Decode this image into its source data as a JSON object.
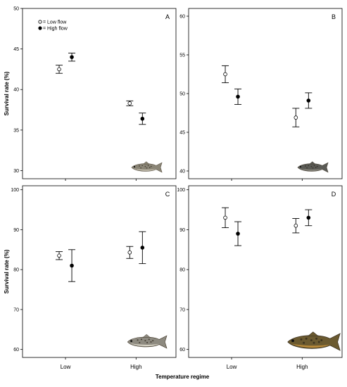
{
  "colors": {
    "low_flow": "#ffffff",
    "high_flow": "#000000",
    "axis": "#000000"
  },
  "figure": {
    "ylabel": "Survival rate (%)",
    "xlabel": "Temperature regime"
  },
  "legend": {
    "placement": "top-left",
    "items": [
      {
        "label": "= Low flow",
        "marker": "open-circle"
      },
      {
        "label": "= High flow",
        "marker": "filled-circle"
      }
    ]
  },
  "chart_data": [
    {
      "panel": "A",
      "type": "scatter",
      "categories": [
        "Low",
        "High"
      ],
      "ylim": [
        29,
        50
      ],
      "yticks": [
        30,
        35,
        40,
        45,
        50
      ],
      "icon": "fish-fry-icon",
      "series": [
        {
          "name": "Low flow",
          "values": [
            42.5,
            38.3
          ],
          "err": [
            0.5,
            0.3
          ]
        },
        {
          "name": "High flow",
          "values": [
            44.0,
            36.4
          ],
          "err": [
            0.5,
            0.7
          ]
        }
      ]
    },
    {
      "panel": "B",
      "type": "scatter",
      "categories": [
        "Low",
        "High"
      ],
      "ylim": [
        39,
        61
      ],
      "yticks": [
        40,
        45,
        50,
        55,
        60
      ],
      "icon": "fish-parr-icon",
      "series": [
        {
          "name": "Low flow",
          "values": [
            52.5,
            46.9
          ],
          "err": [
            1.1,
            1.2
          ]
        },
        {
          "name": "High flow",
          "values": [
            49.6,
            49.1
          ],
          "err": [
            1.0,
            1.0
          ]
        }
      ]
    },
    {
      "panel": "C",
      "type": "scatter",
      "categories": [
        "Low",
        "High"
      ],
      "ylim": [
        58,
        101
      ],
      "yticks": [
        60,
        70,
        80,
        90,
        100
      ],
      "icon": "fish-juvenile-icon",
      "series": [
        {
          "name": "Low flow",
          "values": [
            83.5,
            84.3
          ],
          "err": [
            1.0,
            1.5
          ]
        },
        {
          "name": "High flow",
          "values": [
            81.0,
            85.5
          ],
          "err": [
            4.0,
            4.0
          ]
        }
      ]
    },
    {
      "panel": "D",
      "type": "scatter",
      "categories": [
        "Low",
        "High"
      ],
      "ylim": [
        58,
        101
      ],
      "yticks": [
        60,
        70,
        80,
        90,
        100
      ],
      "icon": "fish-adult-icon",
      "series": [
        {
          "name": "Low flow",
          "values": [
            93.0,
            91.0
          ],
          "err": [
            2.5,
            1.8
          ]
        },
        {
          "name": "High flow",
          "values": [
            89.0,
            93.0
          ],
          "err": [
            3.0,
            2.0
          ]
        }
      ]
    }
  ]
}
